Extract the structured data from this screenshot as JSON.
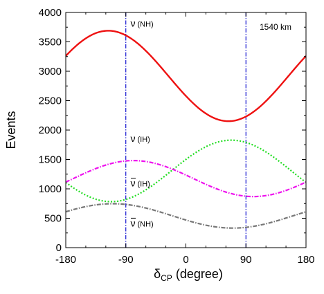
{
  "chart_data": {
    "type": "line",
    "title": "",
    "xlabel": {
      "main": "δ",
      "sub": "CP",
      "rest": " (degree)"
    },
    "ylabel": "Events",
    "xlim": [
      -180,
      180
    ],
    "ylim": [
      0,
      4000
    ],
    "xticks": [
      -180,
      -90,
      0,
      90,
      180
    ],
    "yticks": [
      0,
      500,
      1000,
      1500,
      2000,
      2500,
      3000,
      3500,
      4000
    ],
    "grid": false,
    "legend": "none",
    "baseline_label": "1540 km",
    "vlines": [
      {
        "x": -90,
        "color": "#0000cc",
        "style": "dash-dot"
      },
      {
        "x": 90,
        "color": "#0000cc",
        "style": "dash-dot"
      }
    ],
    "series": [
      {
        "model": {
          "mean": 2920,
          "amp_cos": -340,
          "amp_sin": -690
        },
        "color": "#ee1111",
        "style": "solid",
        "width": 2.4,
        "label": {
          "symbol": "ν",
          "bar": false,
          "tag": "(NH)",
          "at": [
            -83,
            3760
          ]
        }
      },
      {
        "model": {
          "mean": 1305,
          "amp_cos": 195,
          "amp_sin": 485
        },
        "color": "#22dd22",
        "style": "dotted",
        "width": 2.2,
        "label": {
          "symbol": "ν",
          "bar": false,
          "tag": "(IH)",
          "at": [
            -83,
            1800
          ]
        }
      },
      {
        "model": {
          "mean": 1175,
          "amp_cos": 60,
          "amp_sin": -300
        },
        "color": "#ee11ee",
        "style": "dash-dot",
        "width": 2.2,
        "label": {
          "symbol": "ν",
          "bar": true,
          "tag": "(IH)",
          "at": [
            -83,
            1040
          ]
        }
      },
      {
        "model": {
          "mean": 540,
          "amp_cos": -70,
          "amp_sin": -195
        },
        "color": "#777777",
        "style": "dash-dot",
        "width": 2.2,
        "label": {
          "symbol": "ν",
          "bar": true,
          "tag": "(NH)",
          "at": [
            -83,
            360
          ]
        }
      }
    ]
  }
}
